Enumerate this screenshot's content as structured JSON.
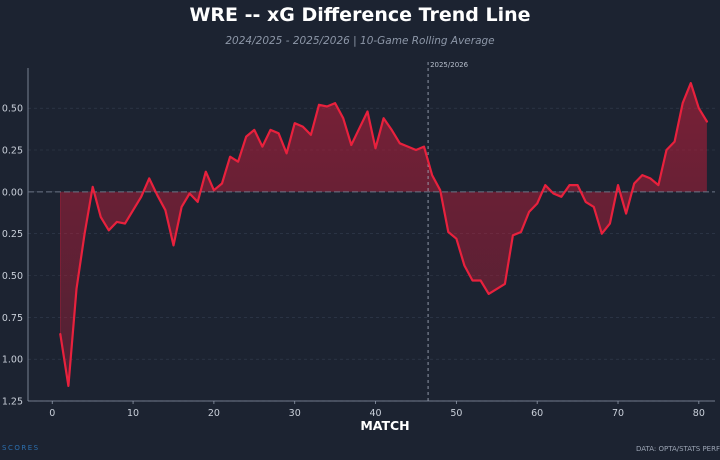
{
  "chart_data": {
    "type": "line",
    "title": "WRE -- xG Difference Trend Line",
    "subtitle": "2024/2025 - 2025/2026 | 10-Game Rolling Average",
    "xlabel": "MATCH",
    "ylabel": "",
    "xlim": [
      -3,
      82
    ],
    "ylim": [
      -1.25,
      0.74
    ],
    "x_ticks": [
      0,
      10,
      20,
      30,
      40,
      50,
      60,
      70,
      80
    ],
    "y_ticks": [
      0.5,
      0.25,
      0.0,
      -0.25,
      -0.5,
      -0.75,
      -1.0,
      -1.25
    ],
    "y_tick_labels": [
      "0.50",
      "0.25",
      "0.00",
      "0.25",
      "0.50",
      "0.75",
      "1.00",
      "1.25"
    ],
    "grid": true,
    "baseline": 0,
    "season_split": {
      "x": 46.5,
      "label": "2025/2026"
    },
    "series": [
      {
        "x": [
          1,
          2,
          3,
          4,
          5,
          6,
          7,
          8,
          9,
          10,
          11,
          12,
          13,
          14,
          15,
          16,
          17,
          18,
          19,
          20,
          21,
          22,
          23,
          24,
          25,
          26,
          27,
          28,
          29,
          30,
          31,
          32,
          33,
          34,
          35,
          36,
          37,
          38,
          39,
          40,
          41,
          42,
          43,
          44,
          45,
          46,
          47,
          48,
          49,
          50,
          51,
          52,
          53,
          54,
          55,
          56,
          57,
          58,
          59,
          60,
          61,
          62,
          63,
          64,
          65,
          66,
          67,
          68,
          69,
          70,
          71,
          72,
          73,
          74,
          75,
          76,
          77,
          78,
          79,
          80,
          81
        ],
        "values": [
          -0.85,
          -1.16,
          -0.58,
          -0.25,
          0.03,
          -0.15,
          -0.23,
          -0.18,
          -0.19,
          -0.11,
          -0.03,
          0.08,
          -0.02,
          -0.11,
          -0.32,
          -0.09,
          -0.01,
          -0.06,
          0.12,
          0.01,
          0.05,
          0.21,
          0.18,
          0.33,
          0.37,
          0.27,
          0.37,
          0.35,
          0.23,
          0.41,
          0.39,
          0.34,
          0.52,
          0.51,
          0.53,
          0.44,
          0.28,
          0.38,
          0.48,
          0.26,
          0.44,
          0.37,
          0.29,
          0.27,
          0.25,
          0.27,
          0.1,
          0.01,
          -0.24,
          -0.28,
          -0.44,
          -0.53,
          -0.53,
          -0.61,
          -0.58,
          -0.55,
          -0.26,
          -0.24,
          -0.12,
          -0.07,
          0.04,
          -0.01,
          -0.03,
          0.04,
          0.04,
          -0.06,
          -0.09,
          -0.25,
          -0.19,
          0.04,
          -0.13,
          0.05,
          0.1,
          0.08,
          0.04,
          0.25,
          0.3,
          0.53,
          0.65,
          0.5,
          0.42
        ],
        "color": "#e8213d"
      }
    ]
  },
  "footer": {
    "source": "DATA: OPTA/STATS PERF",
    "brand": "SCORES"
  }
}
